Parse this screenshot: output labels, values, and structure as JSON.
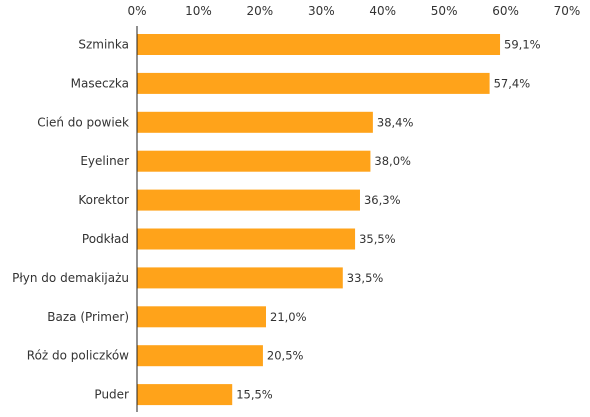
{
  "chart_data": {
    "type": "bar",
    "orientation": "horizontal",
    "title": "",
    "xlabel": "",
    "ylabel": "",
    "xlim": [
      0,
      70
    ],
    "x_ticks": [
      0,
      10,
      20,
      30,
      40,
      50,
      60,
      70
    ],
    "x_tick_labels": [
      "0%",
      "10%",
      "20%",
      "30%",
      "40%",
      "50%",
      "60%",
      "70%"
    ],
    "x_axis_position": "top",
    "grid": false,
    "legend": "none",
    "bar_color": "#FFA31A",
    "categories": [
      "Szminka",
      "Maseczka",
      "Cień do powiek",
      "Eyeliner",
      "Korektor",
      "Podkład",
      "Płyn do demakijażu",
      "Baza (Primer)",
      "Róż do policzków",
      "Puder"
    ],
    "values": [
      59.1,
      57.4,
      38.4,
      38.0,
      36.3,
      35.5,
      33.5,
      21.0,
      20.5,
      15.5
    ],
    "value_labels": [
      "59,1%",
      "57,4%",
      "38,4%",
      "38,0%",
      "36,3%",
      "35,5%",
      "33,5%",
      "21,0%",
      "20,5%",
      "15,5%"
    ]
  }
}
